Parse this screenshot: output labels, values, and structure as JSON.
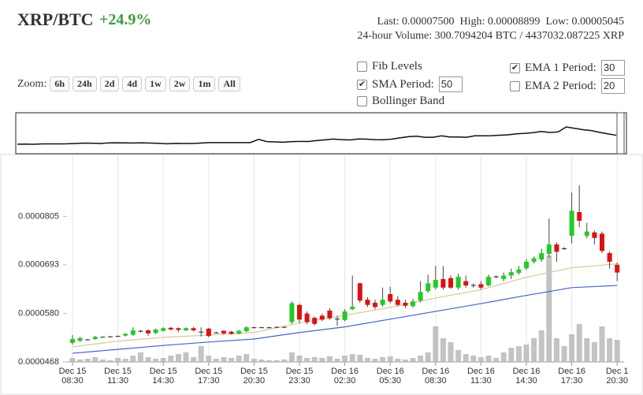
{
  "header": {
    "pair": "XRP/BTC",
    "change": "+24.9%",
    "last": "Last: 0.00007500",
    "high": "High: 0.00008899",
    "low": "Low: 0.00005045",
    "volume": "24-hour Volume: 300.7094204 BTC / 4437032.087225 XRP"
  },
  "zoom": {
    "label": "Zoom:",
    "buttons": [
      "6h",
      "24h",
      "2d",
      "4d",
      "1w",
      "2w",
      "1m",
      "All"
    ]
  },
  "options": [
    {
      "label": "Fib Levels",
      "checked": false
    },
    {
      "label": "SMA Period:",
      "checked": true,
      "value": "50"
    },
    {
      "label": "Bollinger Band",
      "checked": false
    },
    {
      "label": "EMA 1 Period:",
      "checked": true,
      "value": "30"
    },
    {
      "label": "EMA 2 Period:",
      "checked": false,
      "value": "20"
    }
  ],
  "chart_data": {
    "type": "candlestick",
    "up_color": "#22cc22",
    "down_color": "#dd1111",
    "volume_color": "#b8b8b8",
    "ylim": [
      4.68e-05,
      9.41e-05
    ],
    "yticks": [
      4.68e-05,
      {
        "value": 5.8e-05,
        "label": "0.0000580"
      },
      6.93e-05,
      8.05e-05
    ],
    "xgrid": true,
    "xticks": [
      {
        "value": 0,
        "label": [
          "Dec 15",
          "08:30"
        ]
      },
      {
        "value": 6,
        "label": [
          "Dec 15",
          "11:30"
        ]
      },
      {
        "value": 12,
        "label": [
          "Dec 15",
          "14:30"
        ]
      },
      {
        "value": 18,
        "label": [
          "Dec 15",
          "17:30"
        ]
      },
      {
        "value": 24,
        "label": [
          "Dec 15",
          "20:30"
        ]
      },
      {
        "value": 30,
        "label": [
          "Dec 15",
          "23:30"
        ]
      },
      {
        "value": 36,
        "label": [
          "Dec 16",
          "02:30"
        ]
      },
      {
        "value": 42,
        "label": [
          "Dec 16",
          "05:30"
        ]
      },
      {
        "value": 48,
        "label": [
          "Dec 16",
          "08:30"
        ]
      },
      {
        "value": 54,
        "label": [
          "Dec 16",
          "11:30"
        ]
      },
      {
        "value": 60,
        "label": [
          "Dec 16",
          "14:30"
        ]
      },
      {
        "value": 66,
        "label": [
          "Dec 16",
          "17:30"
        ]
      },
      {
        "value": 72,
        "label": [
          "Dec 1",
          "20:30"
        ]
      }
    ],
    "open": [
      5.12e-05,
      5.17e-05,
      5.19e-05,
      5.21e-05,
      5.26e-05,
      5.27e-05,
      5.28e-05,
      5.29e-05,
      5.31e-05,
      5.4e-05,
      5.41e-05,
      5.35e-05,
      5.4e-05,
      5.47e-05,
      5.46e-05,
      5.41e-05,
      5.46e-05,
      5.38e-05,
      5.45e-05,
      5.35e-05,
      5.4e-05,
      5.38e-05,
      5.33e-05,
      5.39e-05,
      5.48e-05,
      5.48e-05,
      5.48e-05,
      5.49e-05,
      5.49e-05,
      5.6e-05,
      6e-05,
      5.8e-05,
      5.7e-05,
      5.75e-05,
      5.87e-05,
      5.67e-05,
      5.65e-05,
      5.9e-05,
      6.5e-05,
      6.12e-05,
      6.05e-05,
      6e-05,
      6.25e-05,
      6.12e-05,
      6.05e-05,
      5.97e-05,
      6.1e-05,
      6.32e-05,
      6.4e-05,
      6.6e-05,
      6.62e-05,
      6.4e-05,
      6.55e-05,
      6.45e-05,
      6.48e-05,
      6.45e-05,
      6.65e-05,
      6.6e-05,
      6.68e-05,
      6.74e-05,
      6.85e-05,
      7e-05,
      7.05e-05,
      7.18e-05,
      7.4e-05,
      7.3e-05,
      7.6e-05,
      8.15e-05,
      7.6e-05,
      7.68e-05,
      7.65e-05,
      7.2e-05,
      6.93e-05
    ],
    "high": [
      5.3e-05,
      5.26e-05,
      5.21e-05,
      5.28e-05,
      5.27e-05,
      5.28e-05,
      5.29e-05,
      5.35e-05,
      5.48e-05,
      5.42e-05,
      5.43e-05,
      5.45e-05,
      5.48e-05,
      5.49e-05,
      5.48e-05,
      5.48e-05,
      5.49e-05,
      5.48e-05,
      5.47e-05,
      5.38e-05,
      5.41e-05,
      5.4e-05,
      5.42e-05,
      5.5e-05,
      5.49e-05,
      5.49e-05,
      5.49e-05,
      5.5e-05,
      5.5e-05,
      6.08e-05,
      6.03e-05,
      5.85e-05,
      5.73e-05,
      5.8e-05,
      5.92e-05,
      5.75e-05,
      5.9e-05,
      6.68e-05,
      6.52e-05,
      6.18e-05,
      6.12e-05,
      6.4e-05,
      6.42e-05,
      6.2e-05,
      6.12e-05,
      6.14e-05,
      6.55e-05,
      6.7e-05,
      6.9e-05,
      6.9e-05,
      6.68e-05,
      6.72e-05,
      6.68e-05,
      6.5e-05,
      6.55e-05,
      6.7e-05,
      6.68e-05,
      6.75e-05,
      6.84e-05,
      6.9e-05,
      7.06e-05,
      7.12e-05,
      7.3e-05,
      8e-05,
      7.45e-05,
      7.34e-05,
      8.6e-05,
      8.77e-05,
      7.9e-05,
      7.72e-05,
      7.7e-05,
      7.24e-05,
      6.98e-05
    ],
    "low": [
      5.08e-05,
      5.14e-05,
      5.18e-05,
      5.19e-05,
      5.25e-05,
      5.26e-05,
      5.27e-05,
      5.27e-05,
      5.28e-05,
      5.36e-05,
      5.28e-05,
      5.32e-05,
      5.38e-05,
      5.41e-05,
      5.37e-05,
      5.4e-05,
      5.38e-05,
      5.27e-05,
      5.25e-05,
      5.34e-05,
      5.31e-05,
      5.31e-05,
      5.32e-05,
      5.37e-05,
      5.47e-05,
      5.47e-05,
      5.47e-05,
      5.48e-05,
      5.48e-05,
      5.56e-05,
      5.58e-05,
      5.55e-05,
      5.52e-05,
      5.62e-05,
      5.65e-05,
      5.52e-05,
      5.62e-05,
      5.88e-05,
      6.05e-05,
      5.95e-05,
      5.9e-05,
      5.96e-05,
      6.04e-05,
      5.97e-05,
      5.93e-05,
      5.94e-05,
      6.06e-05,
      6.28e-05,
      6.36e-05,
      6.35e-05,
      6.37e-05,
      6.35e-05,
      6.4e-05,
      6.4e-05,
      6.36e-05,
      6.43e-05,
      6.62e-05,
      6.55e-05,
      6.6e-05,
      6.7e-05,
      6.8e-05,
      6.96e-05,
      7e-05,
      7.1e-05,
      7e-05,
      7.28e-05,
      7.42e-05,
      7.8e-05,
      7.54e-05,
      7.4e-05,
      7.2e-05,
      6.84e-05,
      6.55e-05
    ],
    "close": [
      5.21e-05,
      5.23e-05,
      5.2e-05,
      5.26e-05,
      5.26e-05,
      5.27e-05,
      5.28e-05,
      5.33e-05,
      5.41e-05,
      5.39e-05,
      5.34e-05,
      5.43e-05,
      5.46e-05,
      5.43e-05,
      5.42e-05,
      5.46e-05,
      5.41e-05,
      5.37e-05,
      5.28e-05,
      5.36e-05,
      5.34e-05,
      5.33e-05,
      5.4e-05,
      5.48e-05,
      5.48e-05,
      5.48e-05,
      5.48e-05,
      5.49e-05,
      5.49e-05,
      6.04e-05,
      5.66e-05,
      5.6e-05,
      5.56e-05,
      5.66e-05,
      5.69e-05,
      5.68e-05,
      5.85e-05,
      5.96e-05,
      6.1e-05,
      6e-05,
      5.95e-05,
      6.12e-05,
      6.08e-05,
      6e-05,
      5.98e-05,
      6.08e-05,
      6.3e-05,
      6.5e-05,
      6.58e-05,
      6.4e-05,
      6.4e-05,
      6.65e-05,
      6.45e-05,
      6.46e-05,
      6.4e-05,
      6.65e-05,
      6.66e-05,
      6.68e-05,
      6.76e-05,
      6.82e-05,
      7e-05,
      7.08e-05,
      7.2e-05,
      7.4e-05,
      7.23e-05,
      7.31e-05,
      8.18e-05,
      7.95e-05,
      7.7e-05,
      7.55e-05,
      7.25e-05,
      7e-05,
      6.75e-05
    ],
    "volume": [
      5,
      3,
      4,
      6,
      3,
      2,
      5,
      4,
      8,
      12,
      6,
      4,
      5,
      8,
      10,
      12,
      6,
      20,
      8,
      4,
      6,
      5,
      8,
      10,
      4,
      3,
      2,
      2,
      3,
      12,
      8,
      5,
      6,
      5,
      7,
      4,
      8,
      10,
      9,
      5,
      4,
      6,
      7,
      4,
      3,
      5,
      8,
      12,
      45,
      30,
      25,
      15,
      10,
      8,
      6,
      8,
      5,
      12,
      18,
      20,
      22,
      30,
      40,
      135,
      30,
      20,
      35,
      48,
      30,
      25,
      45,
      30,
      28
    ],
    "series": [
      {
        "color": "#d8c89a",
        "x": [
          0,
          6,
          12,
          18,
          24,
          30,
          36,
          42,
          48,
          54,
          60,
          66,
          72
        ],
        "values": [
          5.03e-05,
          5.16e-05,
          5.25e-05,
          5.3e-05,
          5.36e-05,
          5.58e-05,
          5.76e-05,
          5.94e-05,
          6.16e-05,
          6.35e-05,
          6.64e-05,
          6.86e-05,
          6.95e-05
        ]
      },
      {
        "color": "#4a62c8",
        "x": [
          0,
          6,
          12,
          18,
          24,
          30,
          36,
          42,
          48,
          54,
          60,
          66,
          72
        ],
        "values": [
          4.88e-05,
          4.97e-05,
          5.06e-05,
          5.14e-05,
          5.21e-05,
          5.36e-05,
          5.49e-05,
          5.67e-05,
          5.85e-05,
          6.03e-05,
          6.22e-05,
          6.4e-05,
          6.45e-05
        ]
      }
    ]
  }
}
